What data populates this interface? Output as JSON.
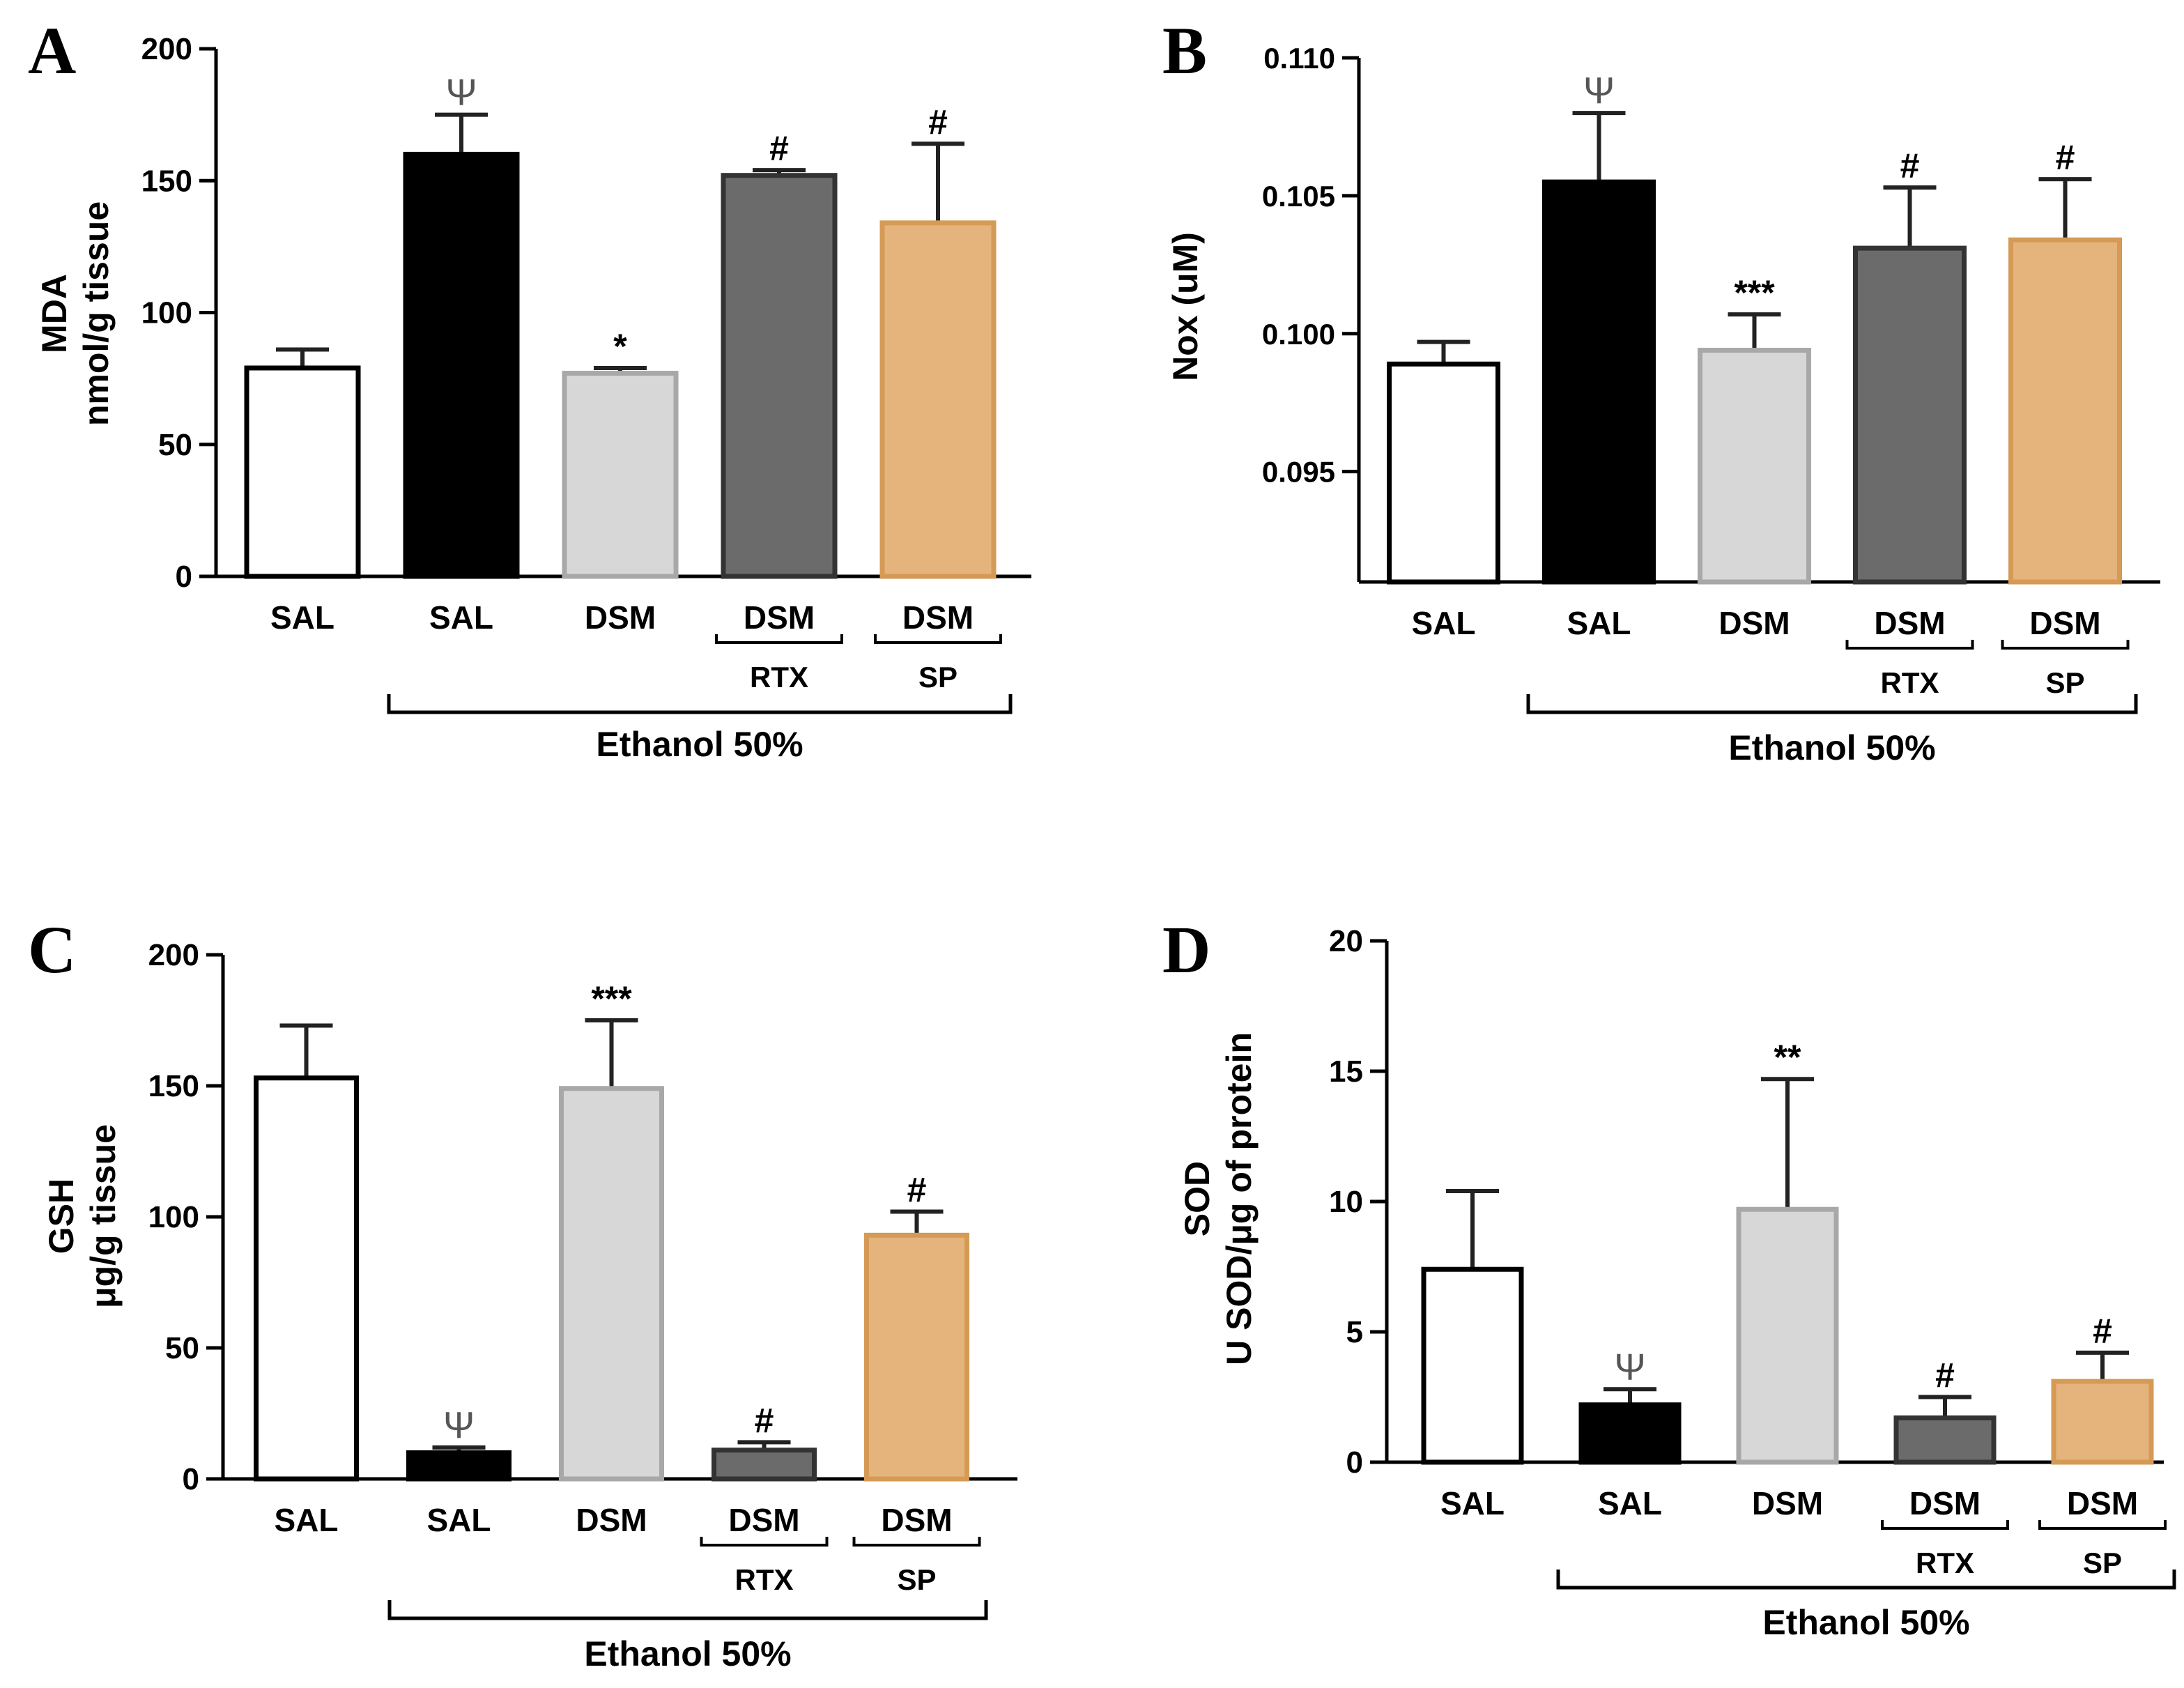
{
  "chart_data": [
    {
      "panel": "A",
      "type": "bar",
      "ylabel_lines": [
        "MDA",
        "nmol/g tissue"
      ],
      "ylim": [
        0,
        200
      ],
      "yticks": [
        0,
        50,
        100,
        150,
        200
      ],
      "categories": [
        "SAL",
        "SAL",
        "DSM",
        "DSM",
        "DSM"
      ],
      "sub_labels": [
        "",
        "",
        "",
        "RTX",
        "SP"
      ],
      "group_label": "Ethanol 50%",
      "values": [
        79,
        160,
        77,
        152,
        134
      ],
      "errors": [
        7,
        15,
        2,
        2,
        30
      ],
      "annotations": [
        "",
        "Ψ",
        "*",
        "#",
        "#"
      ]
    },
    {
      "panel": "B",
      "type": "bar",
      "ylabel_lines": [
        "Nox (uM)"
      ],
      "ylim": [
        0.091,
        0.11
      ],
      "yticks": [
        "0.095",
        "0.100",
        "0.105",
        "0.110"
      ],
      "categories": [
        "SAL",
        "SAL",
        "DSM",
        "DSM",
        "DSM"
      ],
      "sub_labels": [
        "",
        "",
        "",
        "RTX",
        "SP"
      ],
      "group_label": "Ethanol 50%",
      "values": [
        0.0989,
        0.1055,
        0.0994,
        0.1031,
        0.1034
      ],
      "errors": [
        0.0008,
        0.0025,
        0.0013,
        0.0022,
        0.0022
      ],
      "annotations": [
        "",
        "Ψ",
        "***",
        "#",
        "#"
      ]
    },
    {
      "panel": "C",
      "type": "bar",
      "ylabel_lines": [
        "GSH",
        "μg/g tissue"
      ],
      "ylim": [
        0,
        200
      ],
      "yticks": [
        0,
        50,
        100,
        150,
        200
      ],
      "categories": [
        "SAL",
        "SAL",
        "DSM",
        "DSM",
        "DSM"
      ],
      "sub_labels": [
        "",
        "",
        "",
        "RTX",
        "SP"
      ],
      "group_label": "Ethanol 50%",
      "values": [
        153,
        10,
        149,
        11,
        93
      ],
      "errors": [
        20,
        2,
        26,
        3,
        9
      ],
      "annotations": [
        "",
        "Ψ",
        "***",
        "#",
        "#"
      ]
    },
    {
      "panel": "D",
      "type": "bar",
      "ylabel_lines": [
        "SOD",
        "U SOD/μg of protein"
      ],
      "ylim": [
        0,
        20
      ],
      "yticks": [
        0,
        5,
        10,
        15,
        20
      ],
      "categories": [
        "SAL",
        "SAL",
        "DSM",
        "DSM",
        "DSM"
      ],
      "sub_labels": [
        "",
        "",
        "",
        "RTX",
        "SP"
      ],
      "group_label": "Ethanol 50%",
      "values": [
        7.4,
        2.2,
        9.7,
        1.7,
        3.1
      ],
      "errors": [
        3.0,
        0.6,
        5.0,
        0.8,
        1.1
      ],
      "annotations": [
        "",
        "Ψ",
        "**",
        "#",
        "#"
      ]
    }
  ],
  "colors": {
    "bar_fills": [
      "#ffffff",
      "#000000",
      "#d7d7d7",
      "#6b6b6b",
      "#e4b47c"
    ],
    "bar_strokes": [
      "#000000",
      "#000000",
      "#a8a8a8",
      "#333333",
      "#d59a55"
    ],
    "axis": "#000000",
    "psi": "#555555"
  }
}
